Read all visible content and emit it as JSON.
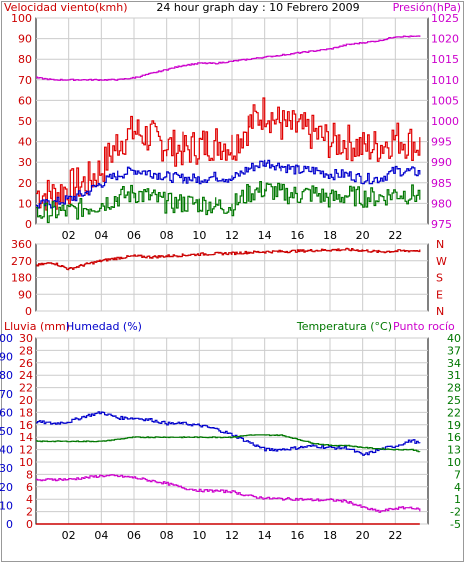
{
  "title": "24 hour graph day : 10 Febrero 2009",
  "colors": {
    "wind_avg": "#0000cc",
    "wind_gust": "#e00000",
    "wind_min": "#007700",
    "pressure": "#cc00cc",
    "direction": "#cc0000",
    "humidity": "#0000cc",
    "temperature": "#007700",
    "dewpoint": "#cc00cc",
    "rain": "#cc0000",
    "grid": "#cccccc",
    "axis_left": "#cc0000",
    "axis_right_pressure": "#cc00cc",
    "axis_humidity": "#0000cc",
    "axis_temp": "#007700"
  },
  "x_tick_labels": [
    "02",
    "04",
    "06",
    "08",
    "10",
    "12",
    "14",
    "16",
    "18",
    "20",
    "22"
  ],
  "chart_data": [
    {
      "type": "line",
      "name": "wind-pressure",
      "labels": {
        "left_axis": "Velocidad viento(kmh)",
        "right_axis": "Presión(hPa)"
      },
      "x_unit": "hour",
      "xlim": [
        0,
        24
      ],
      "ylim_left": [
        0,
        100
      ],
      "ylim_right": [
        975,
        1025
      ],
      "y_ticks_left": [
        "0",
        "10",
        "20",
        "30",
        "40",
        "50",
        "60",
        "70",
        "80",
        "90",
        "100"
      ],
      "y_ticks_right": [
        "975",
        "980",
        "985",
        "990",
        "995",
        "1000",
        "1005",
        "1010",
        "1015",
        "1020",
        "1025"
      ],
      "grid": true,
      "series": [
        {
          "key": "gust",
          "axis": "left",
          "color_key": "wind_gust",
          "x": [
            0,
            1,
            2,
            3,
            4,
            5,
            6,
            7,
            8,
            9,
            10,
            11,
            12,
            13,
            14,
            15,
            16,
            17,
            18,
            19,
            20,
            21,
            22,
            23.5
          ],
          "y": [
            15,
            14,
            18,
            20,
            27,
            40,
            45,
            42,
            38,
            36,
            38,
            40,
            38,
            48,
            55,
            48,
            46,
            44,
            40,
            40,
            37,
            38,
            42,
            38
          ]
        },
        {
          "key": "avg",
          "axis": "left",
          "color_key": "wind_avg",
          "x": [
            0,
            1,
            2,
            3,
            4,
            5,
            6,
            7,
            8,
            9,
            10,
            11,
            12,
            13,
            14,
            15,
            16,
            17,
            18,
            19,
            20,
            21,
            22,
            23.5
          ],
          "y": [
            9,
            10,
            12,
            15,
            20,
            24,
            26,
            25,
            23,
            22,
            22,
            23,
            22,
            27,
            30,
            28,
            26,
            26,
            24,
            24,
            22,
            22,
            26,
            25
          ]
        },
        {
          "key": "min",
          "axis": "left",
          "color_key": "wind_min",
          "x": [
            0,
            1,
            2,
            3,
            4,
            5,
            6,
            7,
            8,
            9,
            10,
            11,
            12,
            13,
            14,
            15,
            16,
            17,
            18,
            19,
            20,
            21,
            22,
            23.5
          ],
          "y": [
            5,
            6,
            6,
            8,
            10,
            13,
            15,
            13,
            10,
            10,
            10,
            9,
            9,
            15,
            17,
            15,
            14,
            15,
            12,
            14,
            13,
            13,
            15,
            14
          ]
        },
        {
          "key": "pressure",
          "axis": "right",
          "color_key": "pressure",
          "x": [
            0,
            1,
            2,
            3,
            4,
            5,
            6,
            7,
            8,
            9,
            10,
            11,
            12,
            13,
            14,
            15,
            16,
            17,
            18,
            19,
            20,
            21,
            22,
            23.5
          ],
          "y": [
            1010.5,
            1010.0,
            1010.0,
            1010.0,
            1010.0,
            1010.0,
            1010.5,
            1011.5,
            1012.5,
            1013.5,
            1014.0,
            1014.0,
            1014.5,
            1015.0,
            1015.5,
            1016.0,
            1016.5,
            1017.0,
            1017.5,
            1018.5,
            1019.0,
            1019.5,
            1020.5,
            1020.5
          ]
        }
      ]
    },
    {
      "type": "line",
      "name": "wind-direction",
      "x_unit": "hour",
      "xlim": [
        0,
        24
      ],
      "ylim": [
        0,
        360
      ],
      "y_ticks_left": [
        "0",
        "90",
        "180",
        "270",
        "360"
      ],
      "y_ticks_right": [
        "N",
        "E",
        "S",
        "W",
        "N"
      ],
      "grid": true,
      "series": [
        {
          "key": "direction",
          "color_key": "direction",
          "x": [
            0,
            1,
            2,
            3,
            4,
            5,
            6,
            7,
            8,
            9,
            10,
            11,
            12,
            13,
            14,
            15,
            16,
            17,
            18,
            19,
            20,
            21,
            22,
            23.5
          ],
          "y": [
            245,
            260,
            225,
            250,
            270,
            285,
            295,
            290,
            295,
            300,
            305,
            308,
            310,
            315,
            318,
            320,
            322,
            325,
            328,
            330,
            325,
            318,
            322,
            325
          ]
        }
      ]
    },
    {
      "type": "line",
      "name": "rain-humidity-temperature",
      "labels": {
        "rain_axis": "Lluvia (mm)",
        "humidity_axis": "Humedad (%)",
        "temperature_axis": "Temperatura (°C)",
        "dewpoint_axis": "Punto rocío"
      },
      "x_unit": "hour",
      "xlim": [
        0,
        24
      ],
      "ylim_rain": [
        0,
        30
      ],
      "ylim_humidity": [
        0,
        100
      ],
      "ylim_temperature": [
        -5,
        40
      ],
      "y_ticks_rain": [
        "0",
        "2",
        "4",
        "6",
        "8",
        "10",
        "12",
        "14",
        "16",
        "18",
        "20",
        "22",
        "24",
        "26",
        "28",
        "30"
      ],
      "y_ticks_humidity": [
        "0",
        "10",
        "20",
        "30",
        "40",
        "50",
        "60",
        "70",
        "80",
        "90",
        "100"
      ],
      "y_ticks_temperature": [
        "-5",
        "-2",
        "1",
        "4",
        "7",
        "10",
        "13",
        "16",
        "19",
        "22",
        "25",
        "28",
        "31",
        "34",
        "37",
        "40"
      ],
      "grid": true,
      "series": [
        {
          "key": "humidity",
          "axis": "humidity",
          "color_key": "humidity",
          "x": [
            0,
            1,
            2,
            3,
            4,
            5,
            6,
            7,
            8,
            9,
            10,
            11,
            12,
            13,
            14,
            15,
            16,
            17,
            18,
            19,
            20,
            21,
            22,
            23,
            23.5
          ],
          "y": [
            55,
            54,
            55,
            58,
            60,
            57,
            57,
            56,
            54,
            54,
            53,
            51,
            48,
            44,
            40,
            40,
            41,
            42,
            41,
            41,
            37,
            40,
            42,
            45,
            43
          ]
        },
        {
          "key": "temperature",
          "axis": "temperature",
          "color_key": "temperature",
          "x": [
            0,
            1,
            2,
            3,
            4,
            5,
            6,
            7,
            8,
            9,
            10,
            11,
            12,
            13,
            14,
            15,
            16,
            17,
            18,
            19,
            20,
            21,
            22,
            23,
            23.5
          ],
          "y": [
            15,
            15,
            15,
            15,
            15,
            15.5,
            16,
            16,
            16,
            16,
            16,
            16,
            16,
            16.5,
            16.5,
            16.5,
            15.5,
            14.5,
            14,
            14,
            13.5,
            13.2,
            13,
            13,
            12.5
          ]
        },
        {
          "key": "dewpoint",
          "axis": "temperature",
          "color_key": "dewpoint",
          "x": [
            0,
            1,
            2,
            3,
            4,
            5,
            6,
            7,
            8,
            9,
            10,
            11,
            12,
            13,
            14,
            15,
            16,
            17,
            18,
            19,
            20,
            21,
            22,
            23,
            23.5
          ],
          "y": [
            5.5,
            5.8,
            5.8,
            6.2,
            6.7,
            6.6,
            6.2,
            5.5,
            4.8,
            3.7,
            3.1,
            3.0,
            2.8,
            1.8,
            1.2,
            1.1,
            1.0,
            0.8,
            0.8,
            0.5,
            -1.0,
            -2.0,
            -1.2,
            -1.0,
            -1.7
          ]
        },
        {
          "key": "rain",
          "axis": "rain",
          "color_key": "rain",
          "x": [
            0,
            6,
            12,
            18,
            23.5
          ],
          "y": [
            0,
            0,
            0,
            0,
            0
          ]
        }
      ]
    }
  ]
}
